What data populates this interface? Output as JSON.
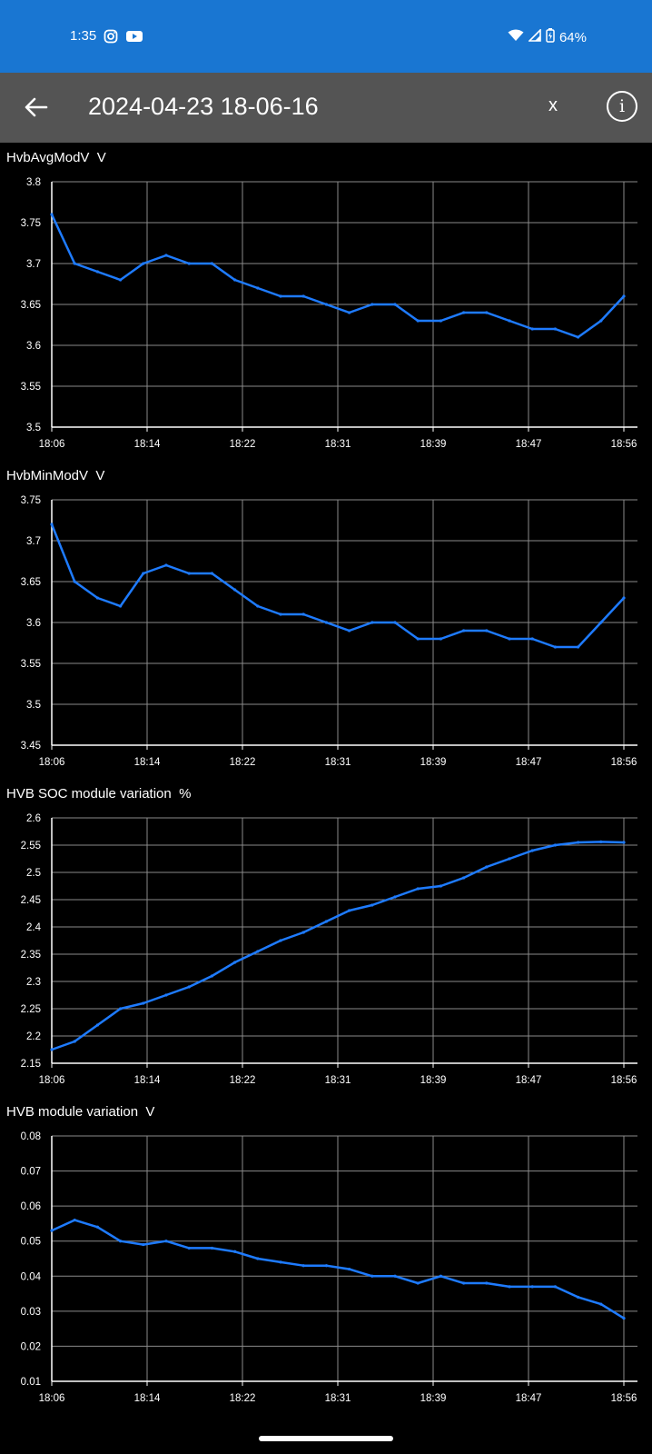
{
  "status_bar": {
    "time": "1:35",
    "battery": "64%"
  },
  "app_bar": {
    "title": "2024-04-23 18-06-16",
    "close_label": "x",
    "info_label": "i"
  },
  "x_ticks": [
    "18:06",
    "18:14",
    "18:22",
    "18:31",
    "18:39",
    "18:47",
    "18:56"
  ],
  "colors": {
    "line": "#1e7bff",
    "grid": "#8a8a8a",
    "status_bar": "#1976d2",
    "app_bar": "#545454"
  },
  "chart_data": [
    {
      "type": "line",
      "title": "HvbAvgModV  V",
      "ylim": [
        3.5,
        3.8
      ],
      "y_ticks": [
        "3.8",
        "3.75",
        "3.7",
        "3.65",
        "3.6",
        "3.55",
        "3.5"
      ],
      "grid": true,
      "x": [
        0,
        2,
        4,
        6,
        8,
        10,
        12,
        14,
        16,
        18,
        20,
        22,
        24,
        26,
        28,
        30,
        32,
        34,
        36,
        38,
        40,
        42,
        44,
        46,
        48,
        50
      ],
      "values": [
        3.76,
        3.7,
        3.69,
        3.68,
        3.7,
        3.71,
        3.7,
        3.7,
        3.68,
        3.67,
        3.66,
        3.66,
        3.65,
        3.64,
        3.65,
        3.65,
        3.63,
        3.63,
        3.64,
        3.64,
        3.63,
        3.62,
        3.62,
        3.61,
        3.63,
        3.66
      ]
    },
    {
      "type": "line",
      "title": "HvbMinModV  V",
      "ylim": [
        3.45,
        3.75
      ],
      "y_ticks": [
        "3.75",
        "3.7",
        "3.65",
        "3.6",
        "3.55",
        "3.5",
        "3.45"
      ],
      "grid": true,
      "x": [
        0,
        2,
        4,
        6,
        8,
        10,
        12,
        14,
        16,
        18,
        20,
        22,
        24,
        26,
        28,
        30,
        32,
        34,
        36,
        38,
        40,
        42,
        44,
        46,
        48,
        50
      ],
      "values": [
        3.72,
        3.65,
        3.63,
        3.62,
        3.66,
        3.67,
        3.66,
        3.66,
        3.64,
        3.62,
        3.61,
        3.61,
        3.6,
        3.59,
        3.6,
        3.6,
        3.58,
        3.58,
        3.59,
        3.59,
        3.58,
        3.58,
        3.57,
        3.57,
        3.6,
        3.63
      ]
    },
    {
      "type": "line",
      "title": "HVB SOC module variation  %",
      "ylim": [
        2.15,
        2.6
      ],
      "y_ticks": [
        "2.6",
        "2.55",
        "2.5",
        "2.45",
        "2.4",
        "2.35",
        "2.3",
        "2.25",
        "2.2",
        "2.15"
      ],
      "grid": true,
      "x": [
        0,
        2,
        4,
        6,
        8,
        10,
        12,
        14,
        16,
        18,
        20,
        22,
        24,
        26,
        28,
        30,
        32,
        34,
        36,
        38,
        40,
        42,
        44,
        46,
        48,
        50
      ],
      "values": [
        2.175,
        2.19,
        2.22,
        2.25,
        2.26,
        2.275,
        2.29,
        2.31,
        2.335,
        2.355,
        2.375,
        2.39,
        2.41,
        2.43,
        2.44,
        2.455,
        2.47,
        2.475,
        2.49,
        2.51,
        2.525,
        2.54,
        2.55,
        2.555,
        2.556,
        2.555
      ]
    },
    {
      "type": "line",
      "title": "HVB module variation  V",
      "ylim": [
        0.01,
        0.08
      ],
      "y_ticks": [
        "0.08",
        "0.07",
        "0.06",
        "0.05",
        "0.04",
        "0.03",
        "0.02",
        "0.01"
      ],
      "grid": true,
      "x": [
        0,
        2,
        4,
        6,
        8,
        10,
        12,
        14,
        16,
        18,
        20,
        22,
        24,
        26,
        28,
        30,
        32,
        34,
        36,
        38,
        40,
        42,
        44,
        46,
        48,
        50
      ],
      "values": [
        0.053,
        0.056,
        0.054,
        0.05,
        0.049,
        0.05,
        0.048,
        0.048,
        0.047,
        0.045,
        0.044,
        0.043,
        0.043,
        0.042,
        0.04,
        0.04,
        0.038,
        0.04,
        0.038,
        0.038,
        0.037,
        0.037,
        0.037,
        0.034,
        0.032,
        0.028
      ]
    }
  ]
}
